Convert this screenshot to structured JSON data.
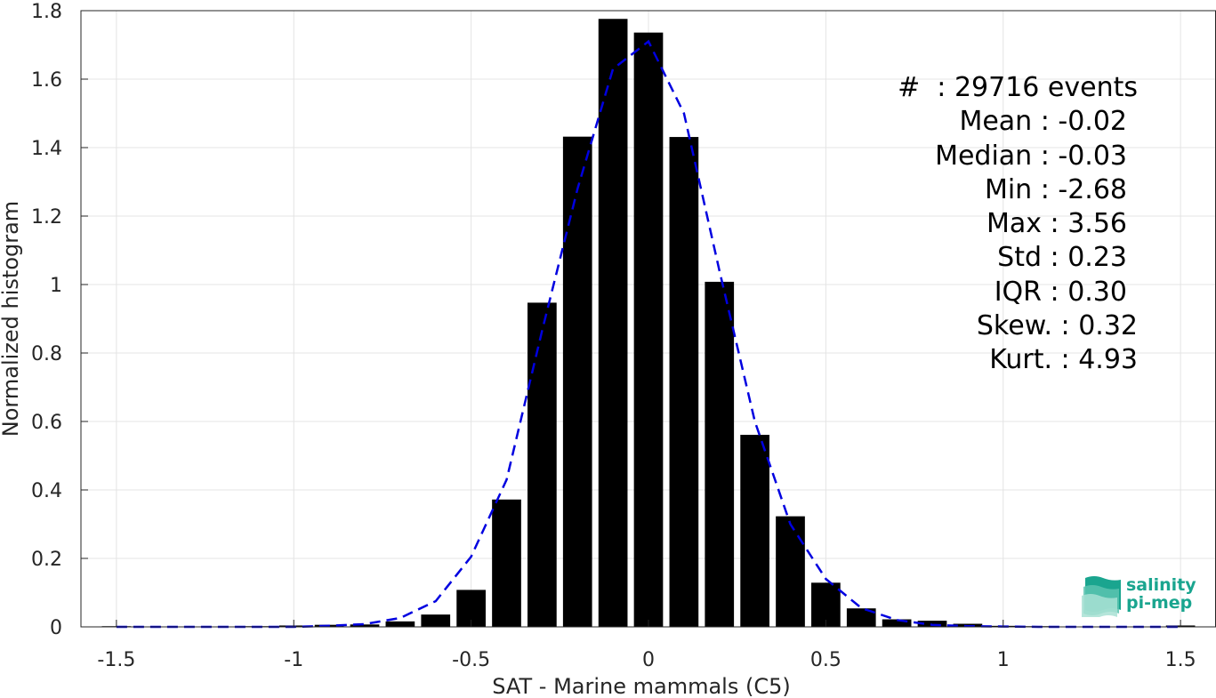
{
  "chart_data": {
    "type": "bar",
    "xlabel": "SAT - Marine mammals (C5)",
    "ylabel": "Normalized histogram",
    "xlim": [
      -1.6,
      1.6
    ],
    "ylim": [
      0,
      1.8
    ],
    "xticks": [
      "-1.5",
      "-1",
      "-0.5",
      "0",
      "0.5",
      "1",
      "1.5"
    ],
    "xtick_values": [
      -1.5,
      -1,
      -0.5,
      0,
      0.5,
      1,
      1.5
    ],
    "yticks": [
      "0",
      "0.2",
      "0.4",
      "0.6",
      "0.8",
      "1",
      "1.2",
      "1.4",
      "1.6",
      "1.8"
    ],
    "ytick_values": [
      0,
      0.2,
      0.4,
      0.6,
      0.8,
      1,
      1.2,
      1.4,
      1.6,
      1.8
    ],
    "grid": true,
    "bin_width": 0.1,
    "bars": {
      "x": [
        -1.5,
        -1.4,
        -1.3,
        -1.2,
        -1.1,
        -1.0,
        -0.9,
        -0.8,
        -0.7,
        -0.6,
        -0.5,
        -0.4,
        -0.3,
        -0.2,
        -0.1,
        0.0,
        0.1,
        0.2,
        0.3,
        0.4,
        0.5,
        0.6,
        0.7,
        0.8,
        0.9,
        1.0,
        1.1,
        1.2,
        1.3,
        1.4,
        1.5
      ],
      "values": [
        0.002,
        0.001,
        0.001,
        0.001,
        0.002,
        0.004,
        0.006,
        0.007,
        0.016,
        0.036,
        0.108,
        0.372,
        0.947,
        1.432,
        1.776,
        1.736,
        1.431,
        1.008,
        0.561,
        0.323,
        0.129,
        0.054,
        0.022,
        0.018,
        0.009,
        0.003,
        0.002,
        0.001,
        0.001,
        0.001,
        0.004
      ],
      "color": "#000000"
    },
    "fit_curve": {
      "style": "dashed",
      "color": "#0000e0",
      "x": [
        -1.5,
        -1.4,
        -1.3,
        -1.2,
        -1.1,
        -1.0,
        -0.9,
        -0.8,
        -0.7,
        -0.6,
        -0.5,
        -0.4,
        -0.3,
        -0.2,
        -0.1,
        0.0,
        0.1,
        0.2,
        0.3,
        0.4,
        0.5,
        0.6,
        0.7,
        0.8,
        0.9,
        1.0,
        1.1,
        1.2,
        1.3,
        1.4,
        1.5
      ],
      "y": [
        0.0,
        0.0,
        0.0,
        0.0,
        0.0,
        0.0,
        0.003,
        0.008,
        0.026,
        0.075,
        0.205,
        0.43,
        0.865,
        1.28,
        1.63,
        1.71,
        1.5,
        1.04,
        0.6,
        0.3,
        0.14,
        0.055,
        0.02,
        0.006,
        0.002,
        0.001,
        0.0,
        0.0,
        0.0,
        0.0,
        0.0
      ]
    },
    "stats": [
      "#  : 29716 events",
      "Mean : -0.02",
      "Median : -0.03",
      "Min : -2.68",
      "Max : 3.56",
      "Std : 0.23",
      "IQR : 0.30",
      "Skew. : 0.32",
      "Kurt. : 4.93"
    ]
  },
  "logo": {
    "line1": "salinity",
    "line2": "pi-mep",
    "color": "#1aa58f"
  }
}
